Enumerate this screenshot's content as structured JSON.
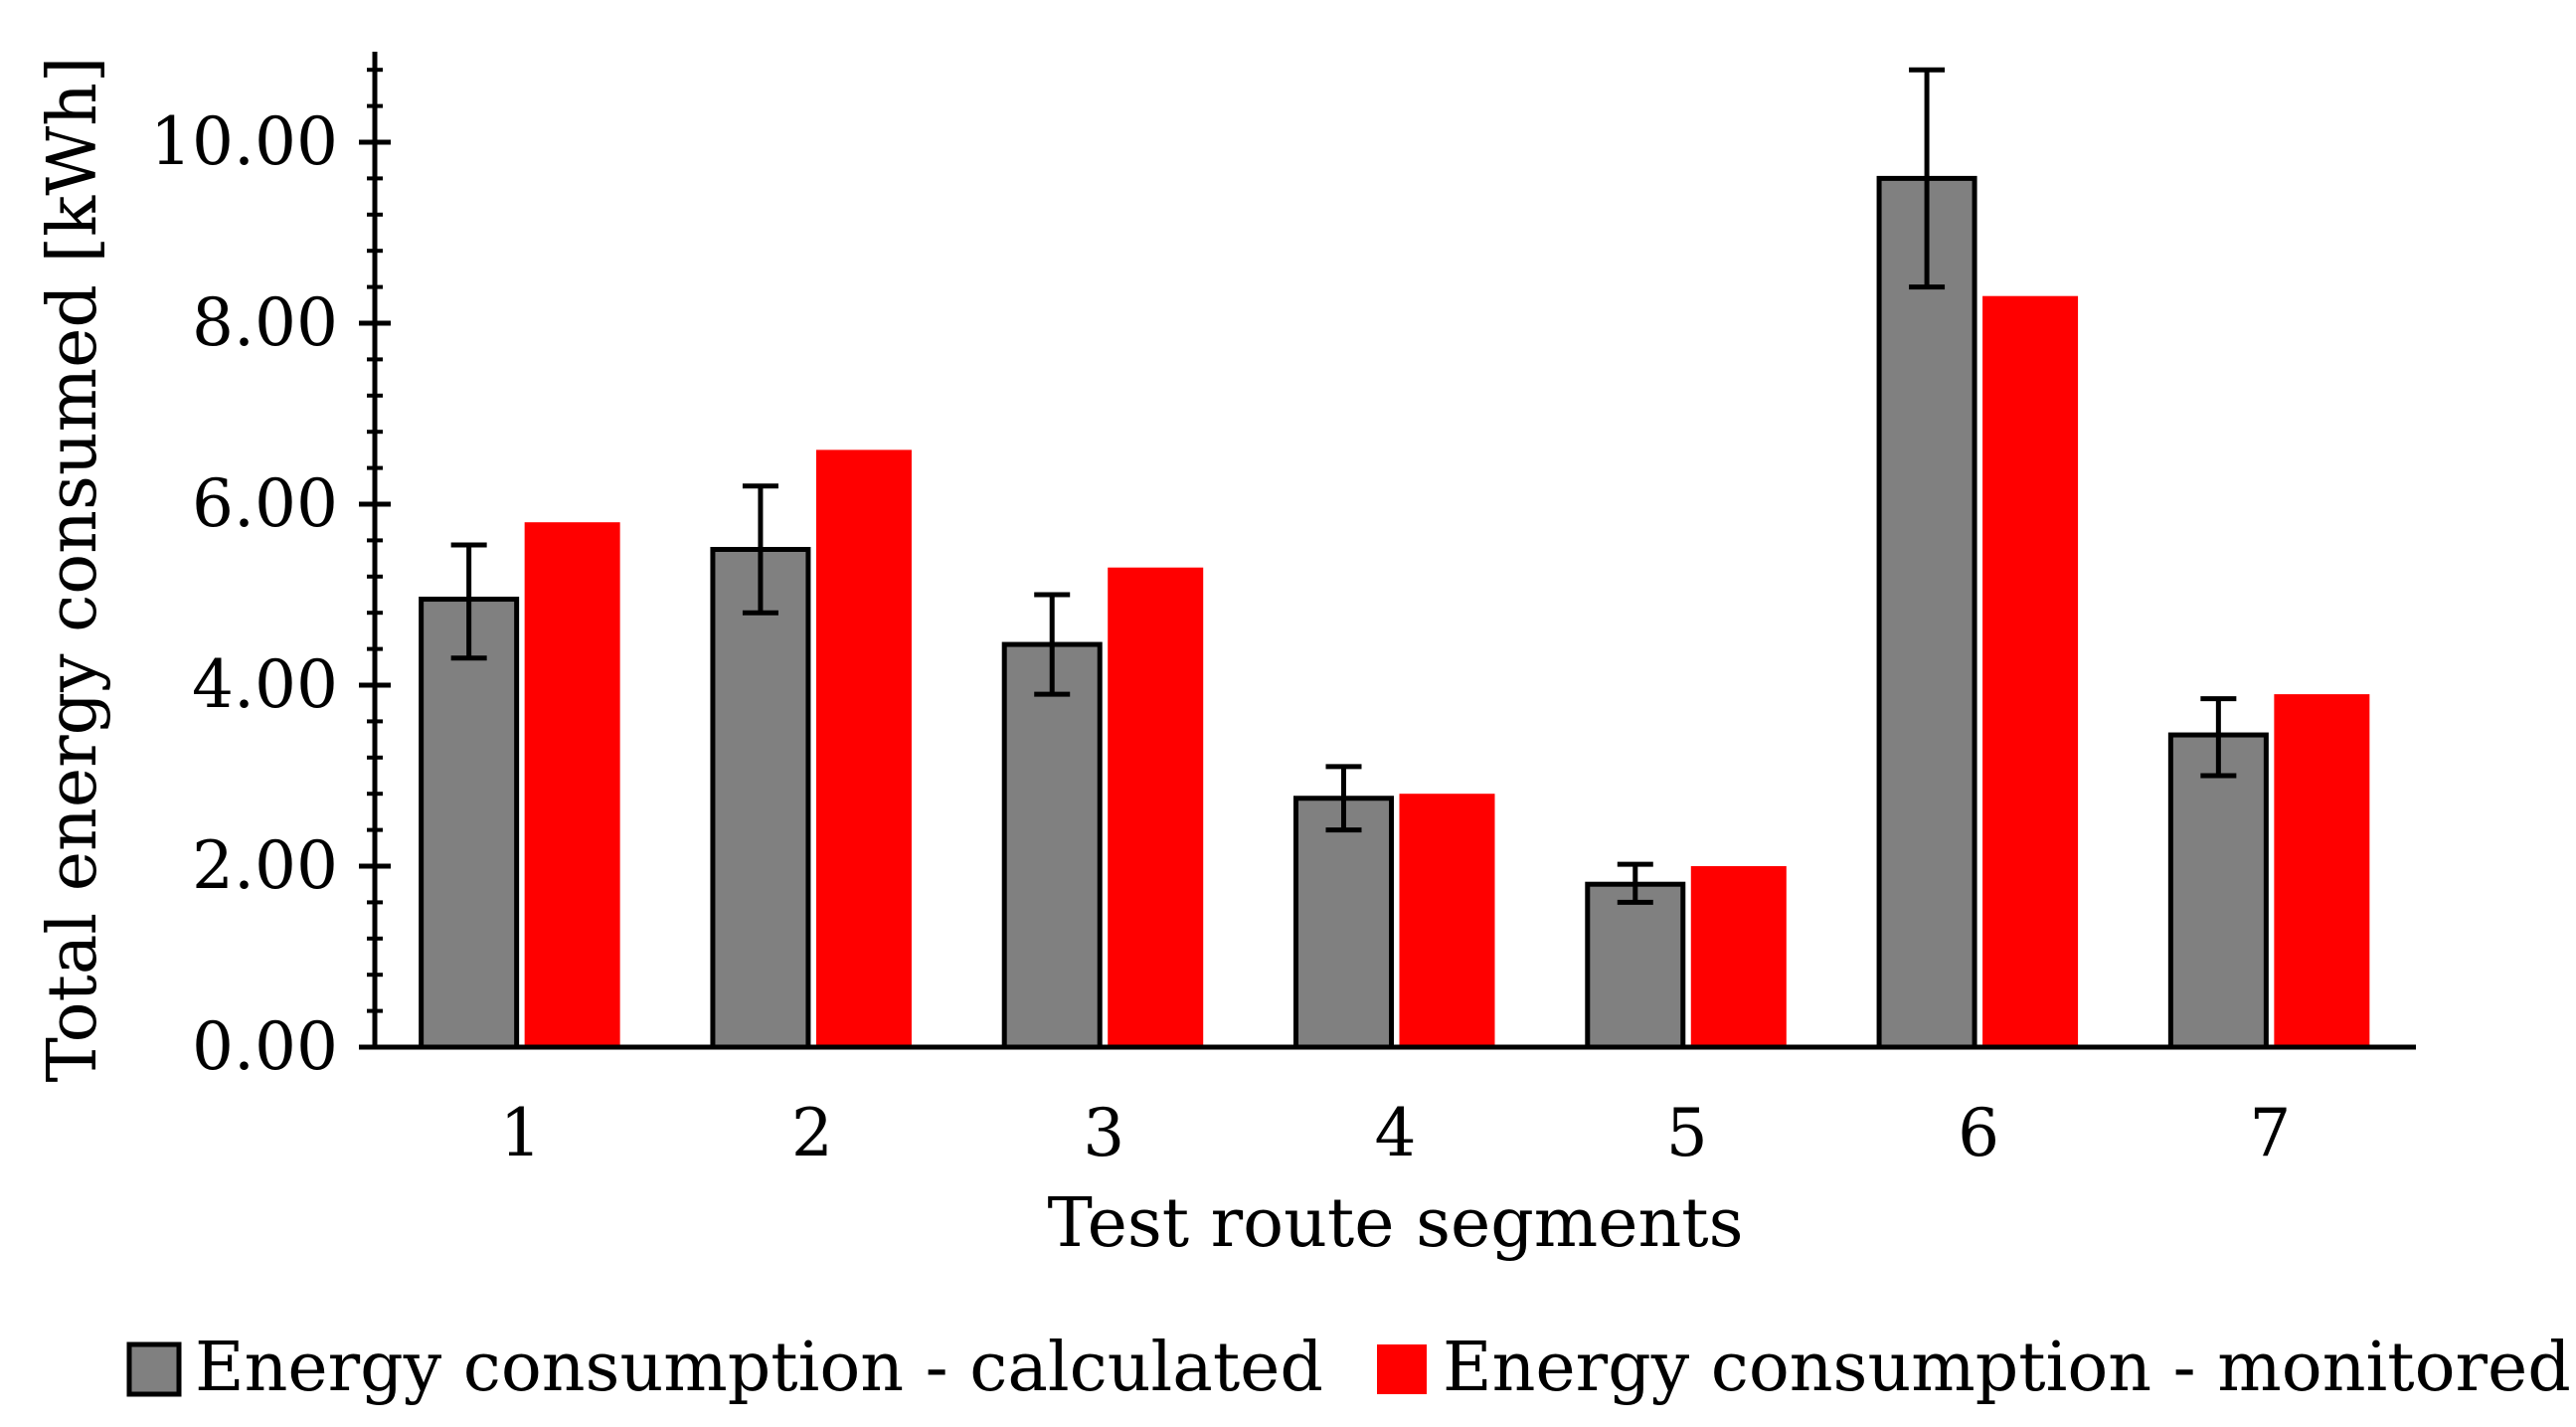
{
  "chart_data": {
    "type": "bar",
    "title": "",
    "xlabel": "Test route segments",
    "ylabel": "Total energy consumed [kWh]",
    "categories": [
      "1",
      "2",
      "3",
      "4",
      "5",
      "6",
      "7"
    ],
    "ylim": [
      0,
      11
    ],
    "yticks": [
      0,
      2,
      4,
      6,
      8,
      10
    ],
    "ytick_labels": [
      "0.00",
      "2.00",
      "4.00",
      "6.00",
      "8.00",
      "10.00"
    ],
    "minor_tick_step": 0.4,
    "grid": false,
    "legend_position": "bottom",
    "series": [
      {
        "name": "Energy consumption - calculated",
        "color": "#808080",
        "values": [
          4.95,
          5.5,
          4.45,
          2.75,
          1.8,
          9.6,
          3.45
        ],
        "error_low": [
          4.3,
          4.8,
          3.9,
          2.4,
          1.6,
          8.4,
          3.0
        ],
        "error_high": [
          5.55,
          6.2,
          5.0,
          3.1,
          2.02,
          10.8,
          3.85
        ]
      },
      {
        "name": "Energy consumption - monitored",
        "color": "#ff0000",
        "values": [
          5.8,
          6.6,
          5.3,
          2.8,
          2.0,
          8.3,
          3.9
        ]
      }
    ]
  }
}
